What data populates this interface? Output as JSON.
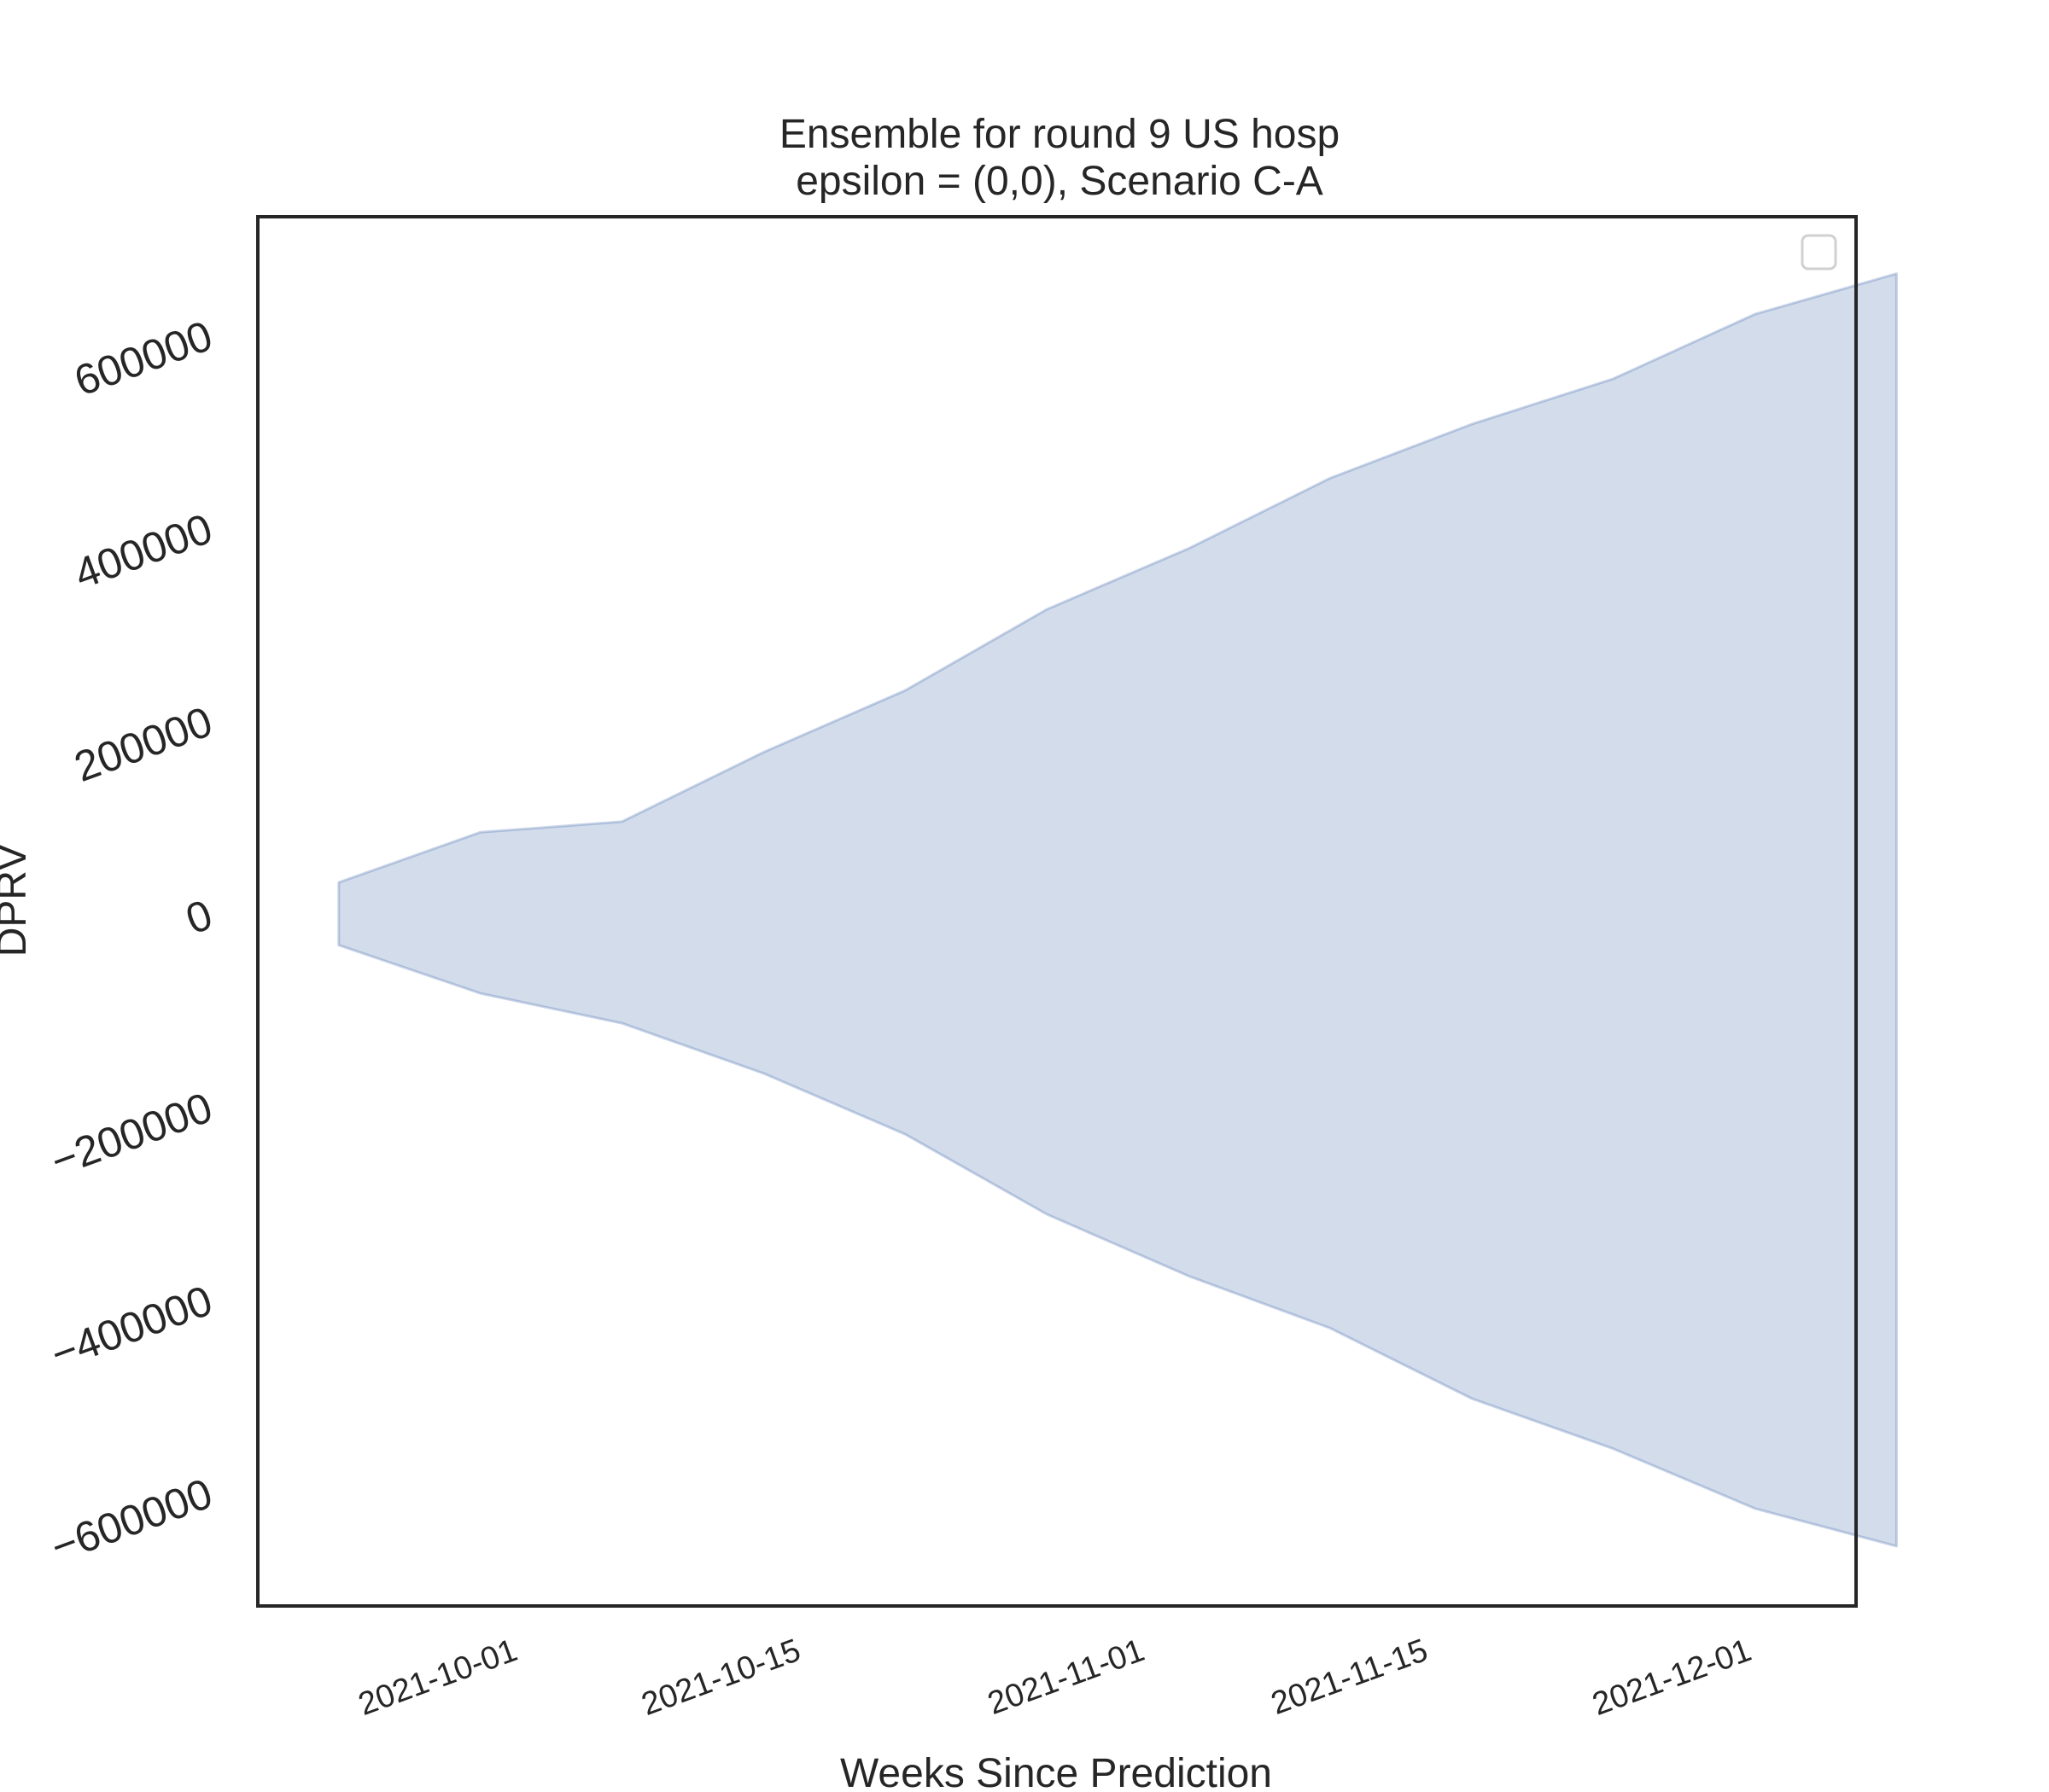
{
  "chart_data": {
    "type": "area",
    "title": "Ensemble for round 9 US hosp",
    "subtitle": "epsilon = (0,0), Scenario C-A",
    "xlabel": "Weeks Since Prediction",
    "ylabel": "DPRV",
    "x_axis_type": "date",
    "xlim": [
      "2021-09-19",
      "2021-12-07"
    ],
    "ylim": [
      -715000,
      725000
    ],
    "grid": false,
    "legend_placement": "top-right",
    "legend_entries": [],
    "x_ticks": [
      "2021-10-01",
      "2021-10-15",
      "2021-11-01",
      "2021-11-15",
      "2021-12-01"
    ],
    "y_ticks": [
      600000,
      400000,
      200000,
      0,
      -200000,
      -400000,
      -600000
    ],
    "y_tick_labels": [
      "600000",
      "400000",
      "200000",
      "0",
      "−200000",
      "−400000",
      "−600000"
    ],
    "series": [
      {
        "x": [
          "2021-09-23",
          "2021-09-30",
          "2021-10-07",
          "2021-10-14",
          "2021-10-21",
          "2021-10-28",
          "2021-11-04",
          "2021-11-11",
          "2021-11-18",
          "2021-11-25",
          "2021-12-02",
          "2021-12-09"
        ],
        "lower": [
          -30000,
          -80000,
          -111000,
          -163000,
          -226000,
          -309000,
          -373000,
          -427000,
          -500000,
          -552000,
          -614000,
          -653000
        ],
        "upper": [
          35000,
          87000,
          98000,
          170000,
          234000,
          318000,
          381000,
          454000,
          510000,
          557000,
          624000,
          666000
        ],
        "color": "#4c72b0",
        "fill_opacity": 0.25
      }
    ]
  }
}
